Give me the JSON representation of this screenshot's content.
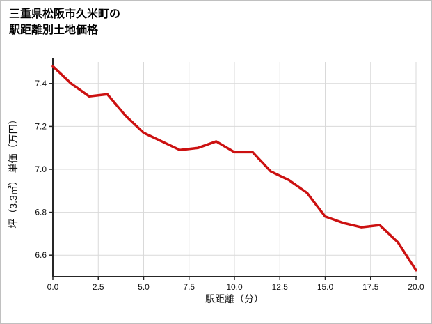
{
  "title": {
    "line1": "三重県松阪市久米町の",
    "line2": "駅距離別土地価格"
  },
  "chart_data": {
    "type": "line",
    "title": "三重県松阪市久米町の駅距離別土地価格",
    "xlabel": "駅距離（分）",
    "ylabel": "坪（3.3㎡） 単価（万円）",
    "x": [
      0,
      1,
      2,
      3,
      4,
      5,
      6,
      7,
      8,
      9,
      10,
      11,
      12,
      13,
      14,
      15,
      16,
      17,
      18,
      19,
      20
    ],
    "values": [
      7.48,
      7.4,
      7.34,
      7.35,
      7.25,
      7.17,
      7.13,
      7.09,
      7.1,
      7.13,
      7.08,
      7.08,
      6.99,
      6.95,
      6.89,
      6.78,
      6.75,
      6.73,
      6.74,
      6.66,
      6.53
    ],
    "xlim": [
      0,
      20
    ],
    "ylim": [
      6.5,
      7.5
    ],
    "xtick_labels": [
      "0.0",
      "2.5",
      "5.0",
      "7.5",
      "10.0",
      "12.5",
      "15.0",
      "17.5",
      "20.0"
    ],
    "ytick_labels": [
      "6.6",
      "6.8",
      "7.0",
      "7.2",
      "7.4"
    ],
    "grid": true,
    "legend": "none",
    "line_color": "#cc1111",
    "grid_color": "#d9d9d9",
    "axis_color": "#262626",
    "tick_text_color": "#111111"
  }
}
